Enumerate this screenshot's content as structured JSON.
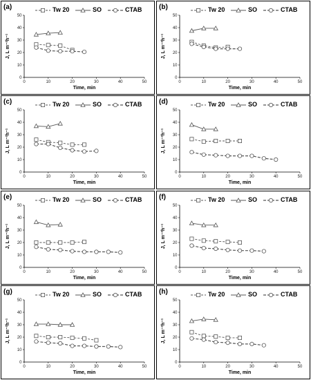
{
  "legend": {
    "tw20": "Tw 20",
    "so": "SO",
    "ctab": "CTAB"
  },
  "colors": {
    "line": "#555555",
    "axis": "#000000",
    "marker_fill": "#ffffff"
  },
  "markers": {
    "tw20": "square",
    "so": "triangle",
    "ctab": "circle"
  },
  "chart_data": [
    {
      "type": "line",
      "label": "(a)",
      "xlabel": "Time, min",
      "ylabel": "J, L m⁻²h⁻¹",
      "xlim": [
        0,
        50
      ],
      "ylim": [
        0,
        50
      ],
      "xticks": [
        0,
        10,
        20,
        30,
        40,
        50
      ],
      "yticks": [
        0,
        10,
        20,
        30,
        40,
        50
      ],
      "series": [
        {
          "name": "Tw 20",
          "x": [
            5,
            10,
            15,
            20
          ],
          "y": [
            26.5,
            26,
            25.5,
            22
          ]
        },
        {
          "name": "SO",
          "x": [
            5,
            10,
            15
          ],
          "y": [
            34.5,
            35.5,
            36
          ]
        },
        {
          "name": "CTAB",
          "x": [
            5,
            10,
            15,
            20,
            25
          ],
          "y": [
            24,
            21.5,
            21,
            21,
            20.5
          ]
        }
      ]
    },
    {
      "type": "line",
      "label": "(b)",
      "xlabel": "Time, min",
      "ylabel": "J, L m⁻²h⁻¹",
      "xlim": [
        0,
        50
      ],
      "ylim": [
        0,
        50
      ],
      "xticks": [
        0,
        10,
        20,
        30,
        40,
        50
      ],
      "yticks": [
        0,
        10,
        20,
        30,
        40,
        50
      ],
      "series": [
        {
          "name": "Tw 20",
          "x": [
            5,
            10,
            15,
            20
          ],
          "y": [
            28.5,
            25.5,
            24,
            24.5
          ]
        },
        {
          "name": "SO",
          "x": [
            5,
            10,
            15
          ],
          "y": [
            37.5,
            39.5,
            39.5
          ]
        },
        {
          "name": "CTAB",
          "x": [
            5,
            10,
            15,
            20,
            25
          ],
          "y": [
            27,
            24.5,
            23,
            23,
            23
          ]
        }
      ]
    },
    {
      "type": "line",
      "label": "(c)",
      "xlabel": "Time, min",
      "ylabel": "J, L m⁻²h⁻¹",
      "xlim": [
        0,
        50
      ],
      "ylim": [
        0,
        50
      ],
      "xticks": [
        0,
        10,
        20,
        30,
        40,
        50
      ],
      "yticks": [
        0,
        10,
        20,
        30,
        40,
        50
      ],
      "series": [
        {
          "name": "Tw 20",
          "x": [
            5,
            10,
            15,
            20,
            25
          ],
          "y": [
            26,
            24,
            23.5,
            22,
            22
          ]
        },
        {
          "name": "SO",
          "x": [
            5,
            10,
            15
          ],
          "y": [
            37,
            36.5,
            39
          ]
        },
        {
          "name": "CTAB",
          "x": [
            5,
            10,
            15,
            20,
            25,
            30
          ],
          "y": [
            22.5,
            22.5,
            19.5,
            17.5,
            16.5,
            17
          ]
        }
      ]
    },
    {
      "type": "line",
      "label": "(d)",
      "xlabel": "Time, min",
      "ylabel": "J, L m⁻²h⁻¹",
      "xlim": [
        0,
        50
      ],
      "ylim": [
        0,
        50
      ],
      "xticks": [
        0,
        10,
        20,
        30,
        40,
        50
      ],
      "yticks": [
        0,
        10,
        20,
        30,
        40,
        50
      ],
      "series": [
        {
          "name": "Tw 20",
          "x": [
            5,
            10,
            15,
            20,
            25
          ],
          "y": [
            26.5,
            24.5,
            25,
            25,
            25
          ]
        },
        {
          "name": "SO",
          "x": [
            5,
            10,
            15
          ],
          "y": [
            38,
            34.5,
            34.5
          ]
        },
        {
          "name": "CTAB",
          "x": [
            5,
            10,
            15,
            20,
            25,
            30,
            35,
            40
          ],
          "y": [
            16,
            14,
            13.5,
            13,
            13,
            13,
            11,
            10
          ]
        }
      ]
    },
    {
      "type": "line",
      "label": "(e)",
      "xlabel": "Time, min",
      "ylabel": "J, L m⁻²h⁻¹",
      "xlim": [
        0,
        50
      ],
      "ylim": [
        0,
        50
      ],
      "xticks": [
        0,
        10,
        20,
        30,
        40,
        50
      ],
      "yticks": [
        0,
        10,
        20,
        30,
        40,
        50
      ],
      "series": [
        {
          "name": "Tw 20",
          "x": [
            5,
            10,
            15,
            20,
            25
          ],
          "y": [
            20,
            20,
            20,
            20,
            20.5
          ]
        },
        {
          "name": "SO",
          "x": [
            5,
            10,
            15
          ],
          "y": [
            36.5,
            34,
            34.5
          ]
        },
        {
          "name": "CTAB",
          "x": [
            5,
            10,
            15,
            20,
            25,
            30,
            35,
            40
          ],
          "y": [
            16.5,
            14.5,
            14,
            13,
            12.5,
            12.5,
            12.5,
            12
          ]
        }
      ]
    },
    {
      "type": "line",
      "label": "(f)",
      "xlabel": "Time, min",
      "ylabel": "J, L m⁻²h⁻¹",
      "xlim": [
        0,
        50
      ],
      "ylim": [
        0,
        50
      ],
      "xticks": [
        0,
        10,
        20,
        30,
        40,
        50
      ],
      "yticks": [
        0,
        10,
        20,
        30,
        40,
        50
      ],
      "series": [
        {
          "name": "Tw 20",
          "x": [
            5,
            10,
            15,
            20,
            25
          ],
          "y": [
            23,
            21.5,
            21,
            20.5,
            20
          ]
        },
        {
          "name": "SO",
          "x": [
            5,
            10,
            15
          ],
          "y": [
            35.5,
            34,
            34
          ]
        },
        {
          "name": "CTAB",
          "x": [
            5,
            10,
            15,
            20,
            25,
            30,
            35
          ],
          "y": [
            17.5,
            15.5,
            15,
            14,
            13.5,
            13.5,
            13
          ]
        }
      ]
    },
    {
      "type": "line",
      "label": "(g)",
      "xlabel": "Time, min",
      "ylabel": "J, L m⁻²h⁻¹",
      "xlim": [
        0,
        50
      ],
      "ylim": [
        0,
        50
      ],
      "xticks": [
        0,
        10,
        20,
        30,
        40,
        50
      ],
      "yticks": [
        0,
        10,
        20,
        30,
        40,
        50
      ],
      "series": [
        {
          "name": "Tw 20",
          "x": [
            5,
            10,
            15,
            20,
            25,
            30
          ],
          "y": [
            21,
            20,
            20,
            19.5,
            19,
            17.5
          ]
        },
        {
          "name": "SO",
          "x": [
            5,
            10,
            15,
            20
          ],
          "y": [
            30.5,
            30.5,
            30,
            30
          ]
        },
        {
          "name": "CTAB",
          "x": [
            5,
            10,
            15,
            20,
            25,
            30,
            35,
            40
          ],
          "y": [
            16.5,
            15.5,
            15,
            13,
            13,
            12.5,
            12.5,
            12
          ]
        }
      ]
    },
    {
      "type": "line",
      "label": "(h)",
      "xlabel": "Time, min",
      "ylabel": "J, L m⁻²h⁻¹",
      "xlim": [
        0,
        50
      ],
      "ylim": [
        0,
        50
      ],
      "xticks": [
        0,
        10,
        20,
        30,
        40,
        50
      ],
      "yticks": [
        0,
        10,
        20,
        30,
        40,
        50
      ],
      "series": [
        {
          "name": "Tw 20",
          "x": [
            5,
            10,
            15,
            20,
            25
          ],
          "y": [
            24,
            21,
            20.5,
            19.5,
            19.5
          ]
        },
        {
          "name": "SO",
          "x": [
            5,
            10,
            15
          ],
          "y": [
            33,
            34.5,
            34
          ]
        },
        {
          "name": "CTAB",
          "x": [
            5,
            10,
            15,
            20,
            25,
            30,
            35
          ],
          "y": [
            19,
            18,
            16,
            15.5,
            14.5,
            14.5,
            13.5
          ]
        }
      ]
    }
  ]
}
